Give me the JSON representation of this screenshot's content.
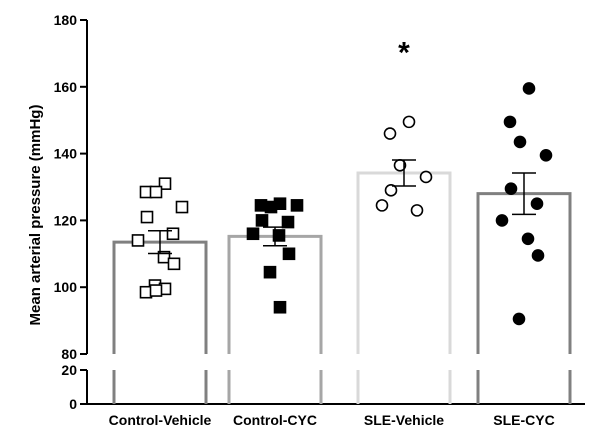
{
  "chart_data": {
    "type": "bar",
    "title": "",
    "xlabel": "",
    "ylabel": "Mean arterial pressure (mmHg)",
    "categories": [
      "Control-Vehicle",
      "Control-CYC",
      "SLE-Vehicle",
      "SLE-CYC"
    ],
    "ylim_upper": [
      80,
      180
    ],
    "ylim_lower": [
      0,
      20
    ],
    "yticks_upper": [
      80,
      100,
      120,
      140,
      160,
      180
    ],
    "yticks_lower": [
      0,
      20
    ],
    "axis_break": true,
    "grid": false,
    "legend": "none",
    "series": [
      {
        "values": [
          113.5,
          115.2,
          134.2,
          128.0
        ],
        "sem": [
          3.4,
          2.8,
          3.9,
          6.2
        ],
        "bar_edge_colors": [
          "#808080",
          "#a6a6a6",
          "#d9d9d9",
          "#808080"
        ],
        "points": [
          [
            131,
            128.5,
            128.5,
            124,
            121,
            116,
            114,
            109,
            107,
            100.5,
            99.5,
            98.5,
            99
          ],
          [
            125,
            124.5,
            124,
            124.5,
            120,
            119.5,
            116,
            115.5,
            110,
            104.5,
            94
          ],
          [
            149.5,
            146,
            136.5,
            133,
            129,
            123,
            124.5
          ],
          [
            159.5,
            149.5,
            143.5,
            139.5,
            129.5,
            125,
            120,
            114.5,
            109.5,
            90.5
          ]
        ],
        "marker_shapes": [
          "square-open",
          "square-filled",
          "circle-open",
          "circle-filled"
        ]
      }
    ],
    "annotations": [
      {
        "category": "SLE-Vehicle",
        "text": "*",
        "y": 172
      }
    ]
  }
}
